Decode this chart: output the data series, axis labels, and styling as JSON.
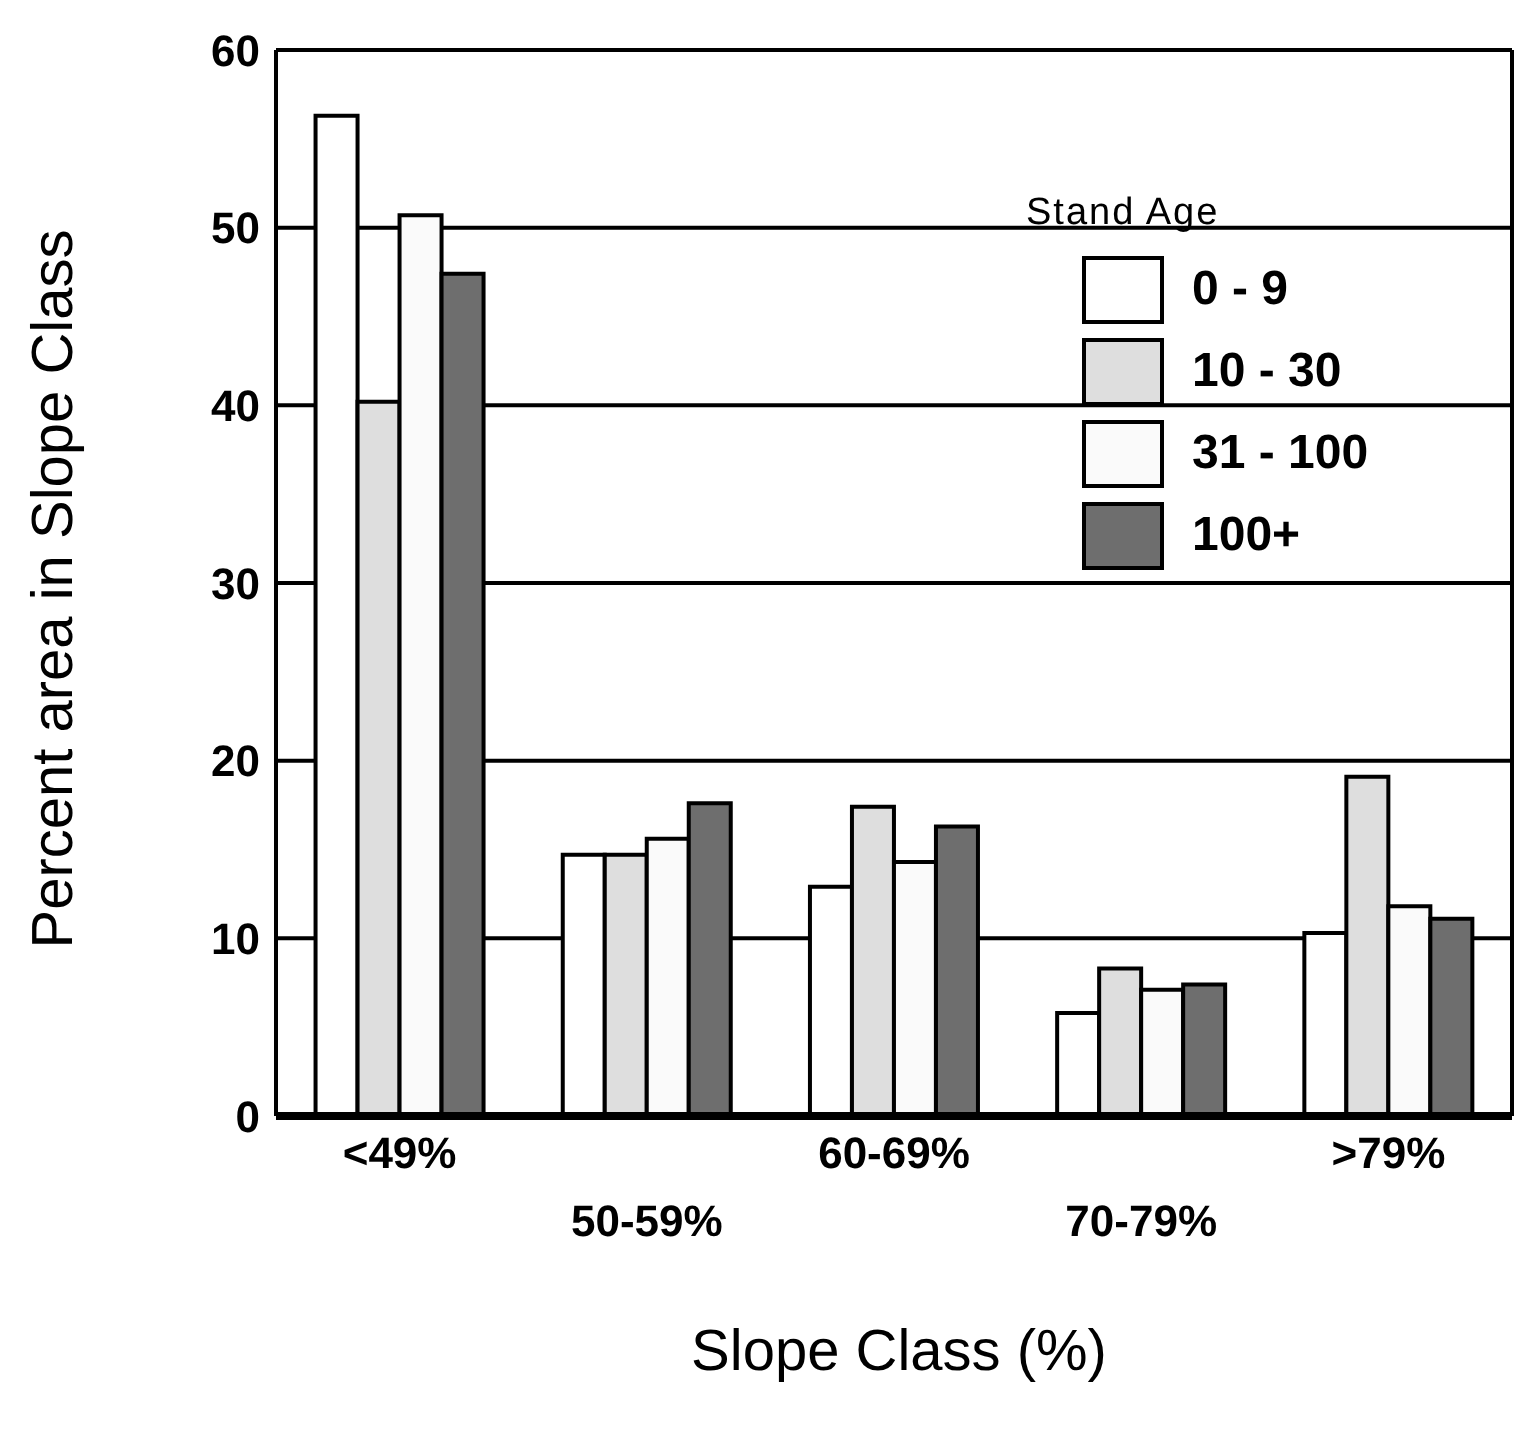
{
  "chart_data": {
    "type": "bar",
    "xlabel": "Slope Class (%)",
    "ylabel": "Percent area in Slope Class",
    "legend_title": "Stand Age",
    "categories": [
      "<49%",
      "50-59%",
      "60-69%",
      "70-79%",
      ">79%"
    ],
    "series": [
      {
        "name": "0 - 9",
        "color": "#ffffff",
        "values": [
          56.3,
          14.7,
          12.9,
          5.8,
          10.3
        ]
      },
      {
        "name": "10 - 30",
        "color": "#dedede",
        "values": [
          40.2,
          14.7,
          17.4,
          8.3,
          19.1
        ]
      },
      {
        "name": "31 - 100",
        "color": "#fafafa",
        "values": [
          50.7,
          15.6,
          14.3,
          7.1,
          11.8
        ]
      },
      {
        "name": "100+",
        "color": "#6e6e6e",
        "values": [
          47.4,
          17.6,
          16.3,
          7.4,
          11.1
        ]
      }
    ],
    "ylim": [
      0,
      60
    ],
    "yticks": [
      0,
      10,
      20,
      30,
      40,
      50,
      60
    ],
    "grid": "y",
    "legend": "top right"
  }
}
